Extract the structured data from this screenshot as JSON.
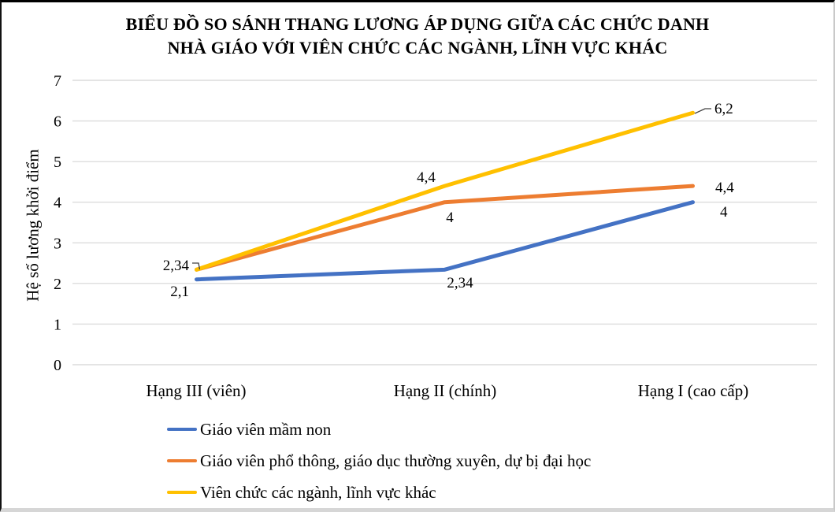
{
  "chart_data": {
    "type": "line",
    "title": "BIỂU ĐỒ SO SÁNH THANG LƯƠNG ÁP DỤNG GIỮA CÁC CHỨC DANH NHÀ GIÁO VỚI VIÊN CHỨC CÁC NGÀNH, LĨNH VỰC KHÁC",
    "title_line1": "BIỂU ĐỒ SO SÁNH THANG LƯƠNG ÁP DỤNG GIỮA CÁC CHỨC DANH",
    "title_line2": "NHÀ GIÁO VỚI VIÊN CHỨC CÁC NGÀNH, LĨNH VỰC KHÁC",
    "ylabel": "Hệ số lương khởi điểm",
    "xlabel": "",
    "categories": [
      "Hạng III (viên)",
      "Hạng II (chính)",
      "Hạng I (cao cấp)"
    ],
    "series": [
      {
        "name": "Giáo viên mầm non",
        "color": "#4472C4",
        "values": [
          2.1,
          2.34,
          4
        ],
        "labels": [
          "2,1",
          "2,34",
          "4"
        ]
      },
      {
        "name": "Giáo viên phổ thông, giáo dục thường xuyên, dự bị đại học",
        "color": "#ED7D31",
        "values": [
          2.34,
          4,
          4.4
        ],
        "labels": [
          "2,34",
          "4",
          "4,4"
        ]
      },
      {
        "name": "Viên chức các ngành, lĩnh vực khác",
        "color": "#FFC000",
        "values": [
          2.34,
          4.4,
          6.2
        ],
        "labels": [
          "2,34",
          "4,4",
          "6,2"
        ]
      }
    ],
    "ylim": [
      0,
      7
    ],
    "yticks": [
      0,
      1,
      2,
      3,
      4,
      5,
      6,
      7
    ],
    "grid": true,
    "grid_color": "#DCDCDC",
    "leader_line_color": "#404040",
    "legend_position": "bottom-left"
  }
}
